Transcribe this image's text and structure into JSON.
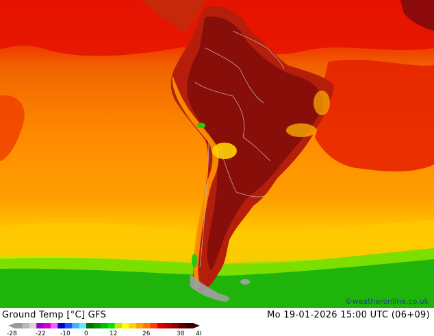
{
  "title": "Ground Temp [°C] GFS",
  "valid_time": "Mo 19-01-2026 15:00 UTC (06+09)",
  "credit": "©weatheronline.co.uk",
  "legend": {
    "colors": [
      "#9a9a9a",
      "#b8b8b8",
      "#d6d6d6",
      "#a000c8",
      "#d200d2",
      "#ff5aff",
      "#0000c8",
      "#1e50ff",
      "#3cb4ff",
      "#64e6ff",
      "#006e00",
      "#009600",
      "#00be00",
      "#00e600",
      "#c8e600",
      "#ffff00",
      "#ffd200",
      "#ffa000",
      "#ff7800",
      "#ff3c00",
      "#dc0000",
      "#b40000",
      "#8c0000",
      "#5a0000",
      "#3c0000"
    ],
    "ticks": [
      "-28",
      "-22",
      "-10",
      "0",
      "12",
      "26",
      "38",
      "48"
    ]
  },
  "colors": {
    "ocean_warm": "#ff8c00",
    "ocean_hot": "#f06400",
    "ocean_north": "#e60a00",
    "land_hot": "#b41e0a",
    "land_very_hot": "#7a0a0a",
    "cold_green": "#28c814",
    "cool_yellowgreen": "#a0e600",
    "border": "#d0d0d0"
  }
}
